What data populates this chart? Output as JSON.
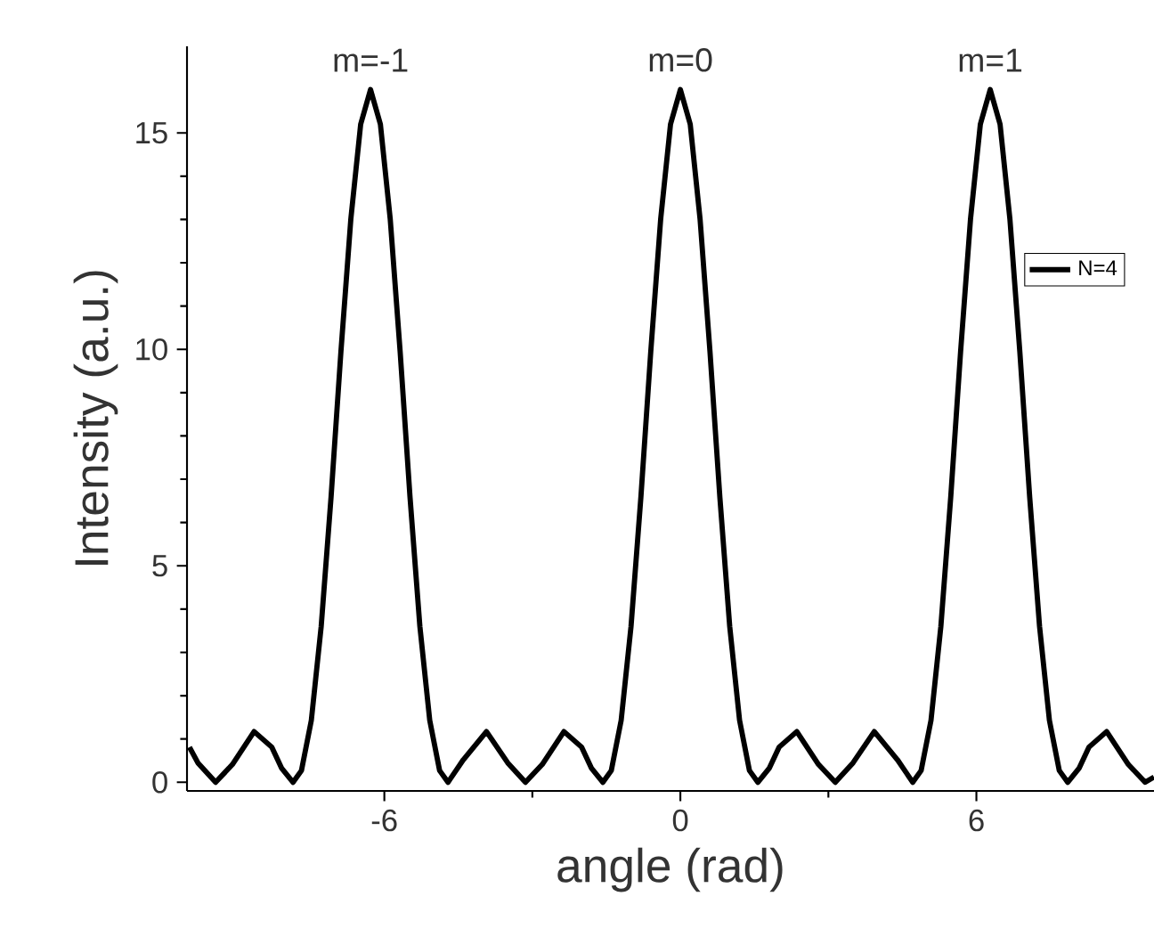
{
  "chart_data": {
    "type": "line",
    "xlabel": "angle (rad)",
    "ylabel": "Intensity (a.u.)",
    "xlim": [
      -10,
      9.6
    ],
    "ylim": [
      -0.2,
      17
    ],
    "xticks": [
      -6,
      0,
      6
    ],
    "yticks": [
      0,
      5,
      10,
      15
    ],
    "x": [
      -9.95,
      -9.78,
      -9.42,
      -9.08,
      -8.64,
      -8.28,
      -8.08,
      -7.85,
      -7.68,
      -7.48,
      -7.28,
      -7.08,
      -6.88,
      -6.68,
      -6.48,
      -6.28,
      -6.08,
      -5.88,
      -5.68,
      -5.48,
      -5.28,
      -5.08,
      -4.88,
      -4.71,
      -4.4,
      -3.93,
      -3.5,
      -3.14,
      -2.8,
      -2.36,
      -2.0,
      -1.8,
      -1.57,
      -1.4,
      -1.2,
      -1.0,
      -0.8,
      -0.6,
      -0.4,
      -0.2,
      0,
      0.2,
      0.4,
      0.6,
      0.8,
      1.0,
      1.2,
      1.4,
      1.57,
      1.8,
      2.0,
      2.36,
      2.8,
      3.14,
      3.5,
      3.93,
      4.4,
      4.71,
      4.88,
      5.08,
      5.28,
      5.48,
      5.68,
      5.88,
      6.08,
      6.28,
      6.48,
      6.68,
      6.88,
      7.08,
      7.28,
      7.48,
      7.68,
      7.85,
      8.08,
      8.28,
      8.64,
      9.08,
      9.42,
      9.6
    ],
    "series": [
      {
        "name": "N=4",
        "color": "#000000",
        "values": [
          0.81,
          0.45,
          0,
          0.41,
          1.17,
          0.81,
          0.32,
          0,
          0.27,
          1.43,
          3.6,
          6.59,
          9.95,
          13.0,
          15.2,
          16,
          15.2,
          13.0,
          9.95,
          6.59,
          3.6,
          1.43,
          0.27,
          0,
          0.52,
          1.17,
          0.45,
          0,
          0.41,
          1.17,
          0.81,
          0.32,
          0,
          0.27,
          1.43,
          3.6,
          6.59,
          9.95,
          13.0,
          15.2,
          16,
          15.2,
          13.0,
          9.95,
          6.59,
          3.6,
          1.43,
          0.27,
          0,
          0.32,
          0.81,
          1.17,
          0.41,
          0,
          0.45,
          1.17,
          0.52,
          0,
          0.27,
          1.43,
          3.6,
          6.59,
          9.95,
          13.0,
          15.2,
          16,
          15.2,
          13.0,
          9.95,
          6.59,
          3.6,
          1.43,
          0.27,
          0,
          0.32,
          0.81,
          1.17,
          0.41,
          0,
          0.12
        ]
      }
    ],
    "legend": "right",
    "grid": false,
    "marker": "none",
    "line_style": "solid",
    "annotations": [
      {
        "text": "m=-1",
        "x": -6.28,
        "y": 16
      },
      {
        "text": "m=0",
        "x": 0,
        "y": 16
      },
      {
        "text": "m=1",
        "x": 6.28,
        "y": 16
      }
    ]
  }
}
